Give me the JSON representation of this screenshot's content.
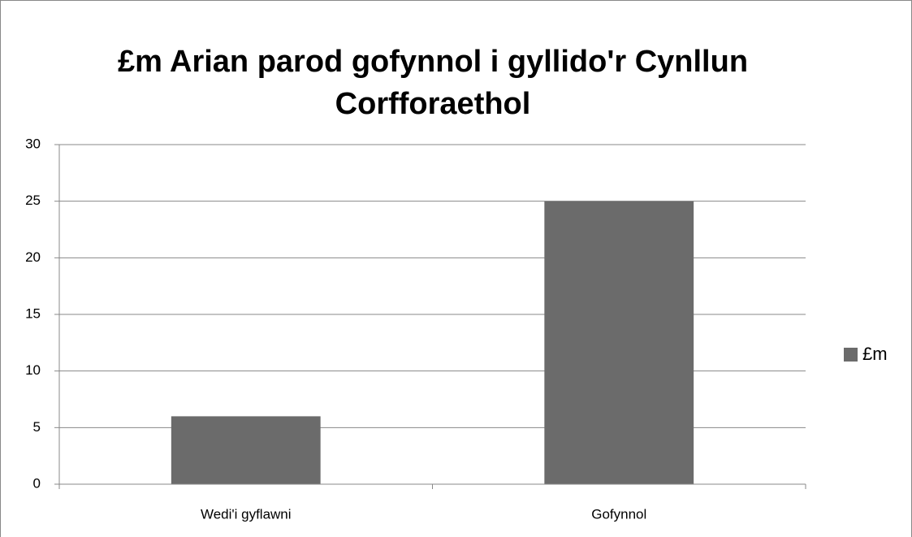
{
  "chart_data": {
    "type": "bar",
    "title": "£m Arian parod gofynnol i gyllido'r Cynllun Corfforaethol",
    "categories": [
      "Wedi'i gyflawni",
      "Gofynnol"
    ],
    "series": [
      {
        "name": "£m",
        "color": "#6b6b6b",
        "values": [
          6,
          25
        ]
      }
    ],
    "ylim": [
      0,
      30
    ],
    "yticks": [
      0,
      5,
      10,
      15,
      20,
      25,
      30
    ],
    "grid": true,
    "legend": "right"
  }
}
